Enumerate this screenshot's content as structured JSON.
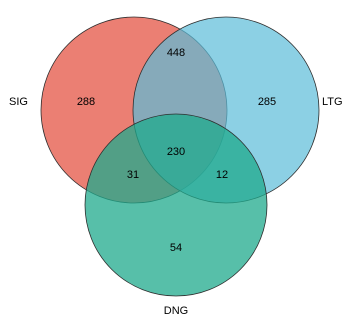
{
  "sets": [
    {
      "key": "sig",
      "label": "SIG",
      "color": "#e8695a"
    },
    {
      "key": "ltg",
      "label": "LTG",
      "color": "#5bbcd8"
    },
    {
      "key": "dng",
      "label": "DNG",
      "color": "#1fa98c"
    }
  ],
  "counts": {
    "sig_only": "288",
    "ltg_only": "285",
    "dng_only": "54",
    "sig_ltg": "448",
    "sig_dng": "31",
    "ltg_dng": "12",
    "all_three": "230"
  }
}
